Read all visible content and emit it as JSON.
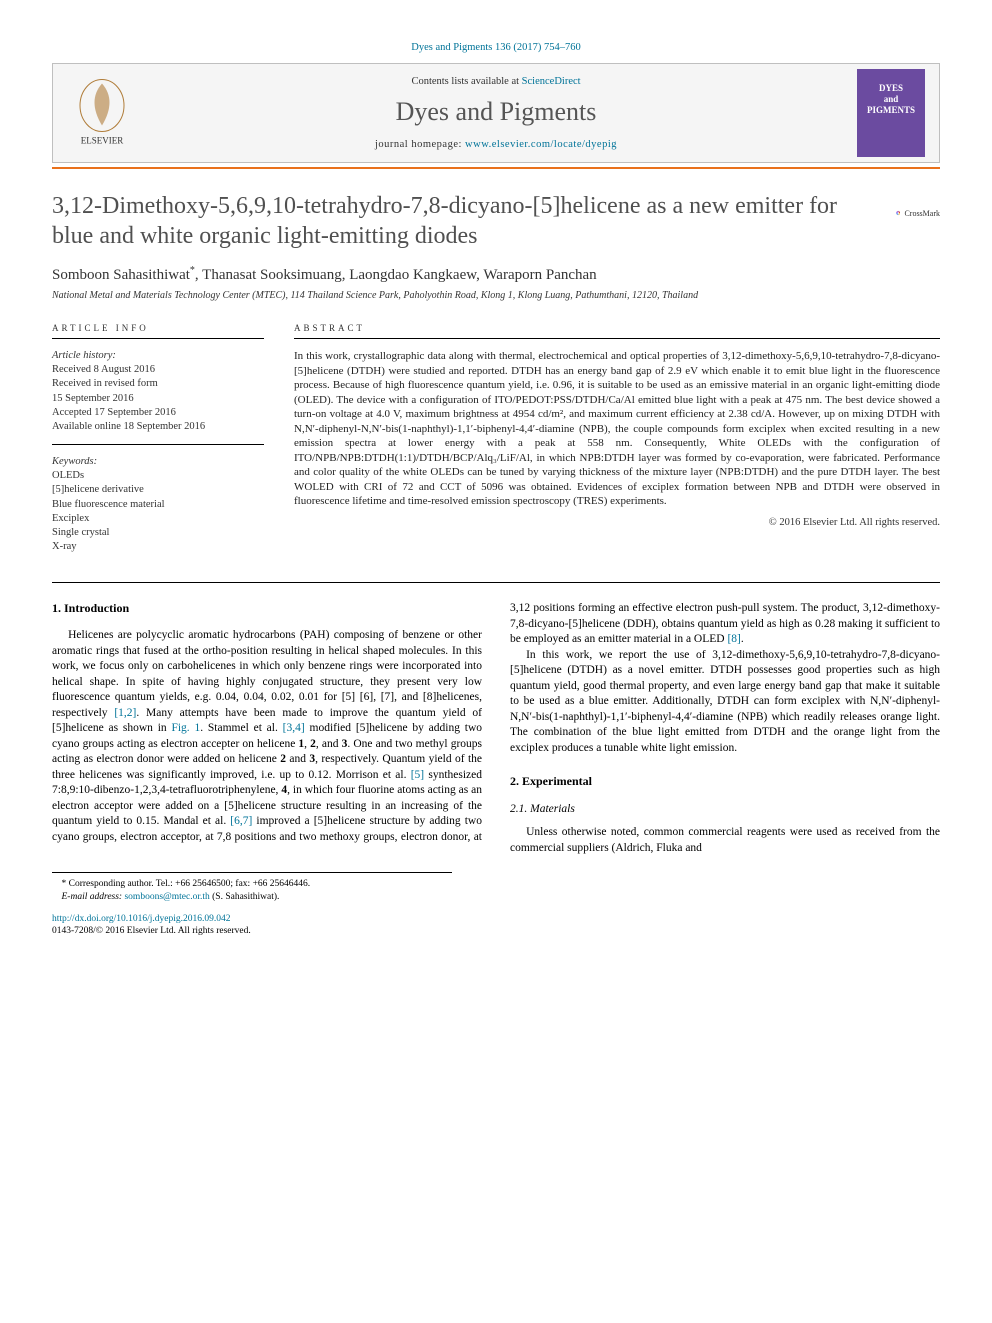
{
  "citation": {
    "journal_abbr": "Dyes and Pigments",
    "vol_issue": "136 (2017) 754–760",
    "link_color": "#007398"
  },
  "header": {
    "contents_prefix": "Contents lists available at ",
    "contents_link": "ScienceDirect",
    "journal_name": "Dyes and Pigments",
    "homepage_prefix": "journal homepage: ",
    "homepage_url": "www.elsevier.com/locate/dyepig",
    "cover_text": "DYES\nand\nPIGMENTS",
    "elsevier_alt": "Elsevier tree logo"
  },
  "colors": {
    "accent_orange": "#e9711c",
    "link": "#007398",
    "cover_bg": "#6b4ba0",
    "box_bg": "#f5f5f5",
    "box_border": "#bfbfbf",
    "title_gray": "#505050"
  },
  "article": {
    "title": "3,12-Dimethoxy-5,6,9,10-tetrahydro-7,8-dicyano-[5]helicene as a new emitter for blue and white organic light-emitting diodes",
    "crossmark_label": "CrossMark",
    "authors_html": "Somboon Sahasithiwat<sup data-name=\"corresponding-marker\">*</sup>, Thanasat Sooksimuang, Laongdao Kangkaew, Waraporn Panchan",
    "affiliation": "National Metal and Materials Technology Center (MTEC), 114 Thailand Science Park, Paholyothin Road, Klong 1, Klong Luang, Pathumthani, 12120, Thailand"
  },
  "info": {
    "heading": "ARTICLE INFO",
    "history_label": "Article history:",
    "history": [
      "Received 8 August 2016",
      "Received in revised form",
      "15 September 2016",
      "Accepted 17 September 2016",
      "Available online 18 September 2016"
    ],
    "keywords_label": "Keywords:",
    "keywords": [
      "OLEDs",
      "[5]helicene derivative",
      "Blue fluorescence material",
      "Exciplex",
      "Single crystal",
      "X-ray"
    ]
  },
  "abstract": {
    "heading": "ABSTRACT",
    "text": "In this work, crystallographic data along with thermal, electrochemical and optical properties of 3,12-dimethoxy-5,6,9,10-tetrahydro-7,8-dicyano-[5]helicene (DTDH) were studied and reported. DTDH has an energy band gap of 2.9 eV which enable it to emit blue light in the fluorescence process. Because of high fluorescence quantum yield, i.e. 0.96, it is suitable to be used as an emissive material in an organic light-emitting diode (OLED). The device with a configuration of ITO/PEDOT:PSS/DTDH/Ca/Al emitted blue light with a peak at 475 nm. The best device showed a turn-on voltage at 4.0 V, maximum brightness at 4954 cd/m², and maximum current efficiency at 2.38 cd/A. However, up on mixing DTDH with N,N′-diphenyl-N,N′-bis(1-naphthyl)-1,1′-biphenyl-4,4′-diamine (NPB), the couple compounds form exciplex when excited resulting in a new emission spectra at lower energy with a peak at 558 nm. Consequently, White OLEDs with the configuration of ITO/NPB/NPB:DTDH(1:1)/DTDH/BCP/Alq₃/LiF/Al, in which NPB:DTDH layer was formed by co-evaporation, were fabricated. Performance and color quality of the white OLEDs can be tuned by varying thickness of the mixture layer (NPB:DTDH) and the pure DTDH layer. The best WOLED with CRI of 72 and CCT of 5096 was obtained. Evidences of exciplex formation between NPB and DTDH were observed in fluorescence lifetime and time-resolved emission spectroscopy (TRES) experiments.",
    "copyright": "© 2016 Elsevier Ltd. All rights reserved."
  },
  "body": {
    "s1_heading": "1. Introduction",
    "s1_p1a": "Helicenes are polycyclic aromatic hydrocarbons (PAH) composing of benzene or other aromatic rings that fused at the ortho-position resulting in helical shaped molecules. In this work, we focus only on carbohelicenes in which only benzene rings were incorporated into helical shape. In spite of having highly conjugated structure, they present very low fluorescence quantum yields, e.g. 0.04, 0.04, 0.02, 0.01 for [5] [6], [7], and [8]helicenes, respectively ",
    "s1_ref1": "[1,2]",
    "s1_p1b": ". Many attempts have been made to improve the quantum yield of [5]helicene as shown in ",
    "s1_fig1": "Fig. 1",
    "s1_p1c": ". Stammel et al. ",
    "s1_ref2": "[3,4]",
    "s1_p1d": " modified [5]helicene by adding two cyano groups acting as electron accepter on helicene ",
    "s1_b1": "1",
    "s1_p1e": ", ",
    "s1_b2": "2",
    "s1_p1f": ", and ",
    "s1_b3": "3",
    "s1_p1g": ". One and two methyl groups acting as electron donor were added on helicene ",
    "s1_b2b": "2",
    "s1_p1h": " and ",
    "s1_b3b": "3",
    "s1_p1i": ", respectively. Quantum yield of the three helicenes was significantly improved, i.e. up to 0.12. Morrison et al. ",
    "s1_ref3": "[5]",
    "s1_p1j": " synthesized 7:8,9:10-dibenzo-1,2,3,4-tetrafluorotriphenylene, ",
    "s1_b4": "4",
    "s1_p1k": ", in which four fluorine atoms acting as an electron acceptor were added on a [5]helicene structure resulting in an increasing of the quantum yield to 0.15. Mandal et al. ",
    "s1_ref4": "[6,7]",
    "s1_p1l": " improved a [5]helicene structure by adding two cyano groups, electron acceptor, at 7,8 positions and two methoxy groups, electron donor, at 3,12 positions forming an effective electron push-pull system. The product, 3,12-dimethoxy-7,8-dicyano-[5]helicene (DDH), obtains quantum yield as high as 0.28 making it sufficient to be employed as an emitter material in a OLED ",
    "s1_ref5": "[8]",
    "s1_p1m": ".",
    "s1_p2": "In this work, we report the use of 3,12-dimethoxy-5,6,9,10-tetrahydro-7,8-dicyano-[5]helicene (DTDH) as a novel emitter. DTDH possesses good properties such as high quantum yield, good thermal property, and even large energy band gap that make it suitable to be used as a blue emitter. Additionally, DTDH can form exciplex with N,N′-diphenyl-N,N′-bis(1-naphthyl)-1,1′-biphenyl-4,4′-diamine (NPB) which readily releases orange light. The combination of the blue light emitted from DTDH and the orange light from the exciplex produces a tunable white light emission.",
    "s2_heading": "2. Experimental",
    "s21_heading": "2.1. Materials",
    "s21_p1": "Unless otherwise noted, common commercial reagents were used as received from the commercial suppliers (Aldrich, Fluka and"
  },
  "footnote": {
    "corr_label": "* Corresponding author.",
    "tel": " Tel.: +66 25646500; fax: +66 25646446.",
    "email_label": "E-mail address: ",
    "email": "somboons@mtec.or.th",
    "email_suffix": " (S. Sahasithiwat)."
  },
  "footer": {
    "doi_url": "http://dx.doi.org/10.1016/j.dyepig.2016.09.042",
    "issn_line": "0143-7208/© 2016 Elsevier Ltd. All rights reserved."
  }
}
